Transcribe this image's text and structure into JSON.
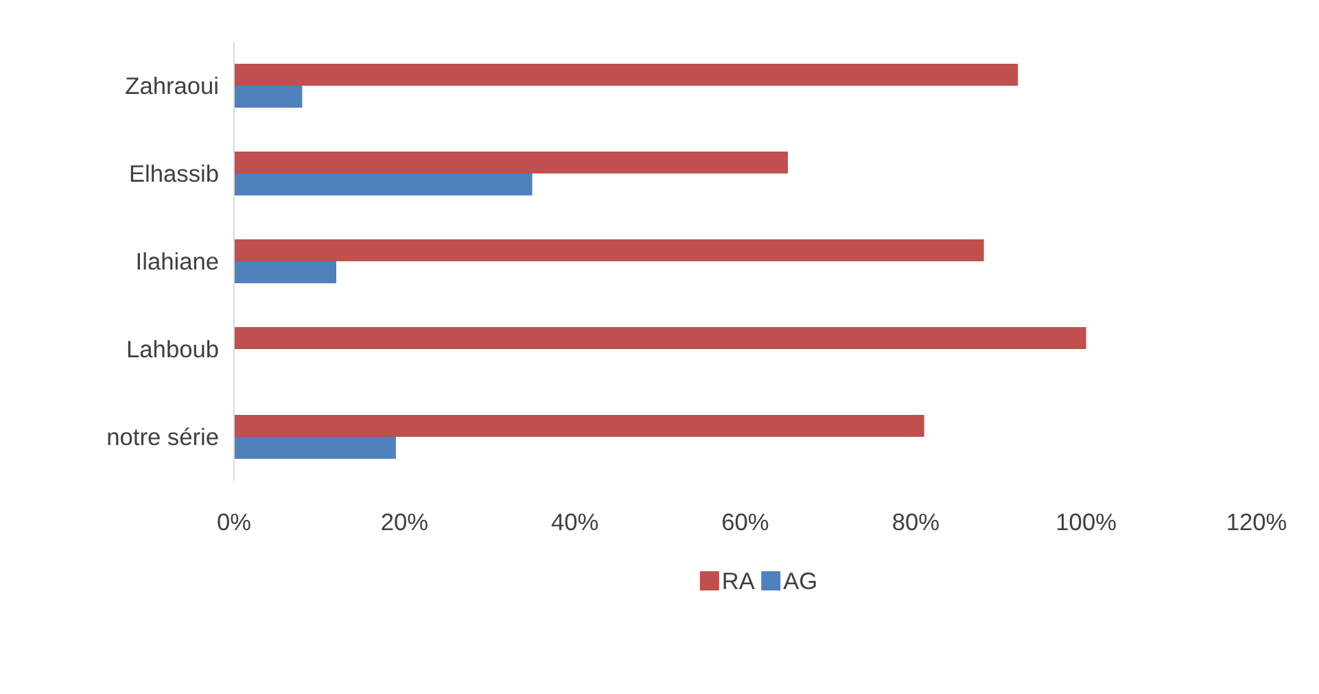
{
  "chart_data": {
    "type": "bar",
    "orientation": "horizontal",
    "categories": [
      "Zahraoui",
      "Elhassib",
      "Ilahiane",
      "Lahboub",
      "notre série"
    ],
    "series": [
      {
        "name": "RA",
        "color": "#c0504d",
        "values": [
          92,
          65,
          88,
          100,
          81
        ]
      },
      {
        "name": "AG",
        "color": "#4f81bd",
        "values": [
          8,
          35,
          12,
          0,
          19
        ]
      }
    ],
    "xlim": [
      0,
      120
    ],
    "xticks": [
      {
        "value": 0,
        "label": "0%"
      },
      {
        "value": 20,
        "label": "20%"
      },
      {
        "value": 40,
        "label": "40%"
      },
      {
        "value": 60,
        "label": "60%"
      },
      {
        "value": 80,
        "label": "80%"
      },
      {
        "value": 100,
        "label": "100%"
      },
      {
        "value": 120,
        "label": "120%"
      }
    ],
    "grid": false,
    "legend": "bottom"
  }
}
